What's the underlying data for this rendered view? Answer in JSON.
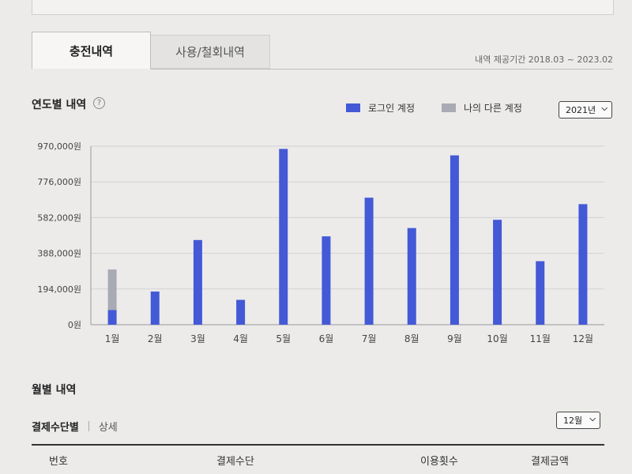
{
  "tabs": [
    {
      "label": "충전내역",
      "active": true
    },
    {
      "label": "사용/철회내역",
      "active": false
    }
  ],
  "period_text": "내역 제공기간 2018.03 ~ 2023.02",
  "yearly": {
    "title": "연도별 내역",
    "help_icon": "?",
    "year_select": "2021년"
  },
  "legend": [
    {
      "label": "로그인 계정",
      "color": "#4359d6"
    },
    {
      "label": "나의 다른 계정",
      "color": "#a8aab4"
    }
  ],
  "chart_data": {
    "type": "bar",
    "stacked": true,
    "categories": [
      "1월",
      "2월",
      "3월",
      "4월",
      "5월",
      "6월",
      "7월",
      "8월",
      "9월",
      "10월",
      "11월",
      "12월"
    ],
    "series": [
      {
        "name": "로그인 계정",
        "color": "#4359d6",
        "values": [
          80000,
          180000,
          460000,
          135000,
          955000,
          480000,
          690000,
          525000,
          920000,
          570000,
          345000,
          655000
        ]
      },
      {
        "name": "나의 다른 계정",
        "color": "#a8aab4",
        "values": [
          220000,
          0,
          0,
          0,
          0,
          0,
          0,
          0,
          0,
          0,
          0,
          0
        ]
      }
    ],
    "ylim": [
      0,
      970000
    ],
    "yticks": [
      0,
      194000,
      388000,
      582000,
      776000,
      970000
    ],
    "ytick_labels": [
      "0원",
      "194,000원",
      "388,000원",
      "582,000원",
      "776,000원",
      "970,000원"
    ],
    "grid": true
  },
  "monthly": {
    "title": "월별 내역",
    "subtab_active": "결제수단별",
    "subtab_inactive": "상세",
    "month_select": "12월",
    "columns": [
      "번호",
      "결제수단",
      "이용횟수",
      "결제금액"
    ]
  }
}
